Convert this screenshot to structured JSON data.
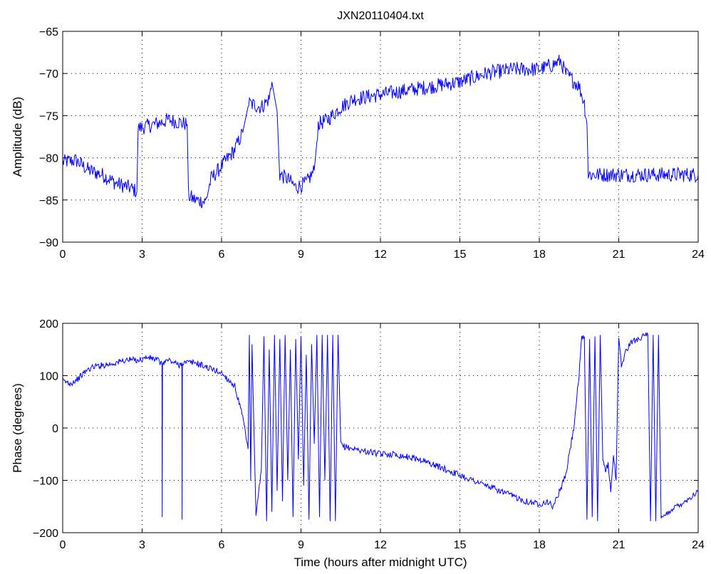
{
  "chart_data": [
    {
      "type": "line",
      "title": "JXN20110404.txt",
      "xlabel": "",
      "ylabel": "Amplitude (dB)",
      "xlim": [
        0,
        24
      ],
      "ylim": [
        -90,
        -65
      ],
      "xticks": [
        "0",
        "3",
        "6",
        "9",
        "12",
        "15",
        "18",
        "21",
        "24"
      ],
      "yticks": [
        "−65",
        "−70",
        "−75",
        "−80",
        "−85",
        "−90"
      ],
      "grid": true,
      "series": [
        {
          "color": "#0000ff",
          "x": [
            0,
            0.5,
            1.0,
            1.5,
            2.0,
            2.5,
            2.8,
            2.85,
            3.5,
            4.0,
            4.7,
            4.75,
            5.0,
            5.4,
            5.6,
            6.0,
            6.5,
            6.8,
            7.0,
            7.5,
            7.8,
            7.9,
            8.1,
            8.2,
            8.5,
            8.8,
            9.2,
            9.5,
            9.6,
            9.65,
            10.0,
            10.5,
            11.0,
            12.0,
            13.0,
            14.0,
            15.0,
            16.0,
            17.0,
            17.5,
            18.0,
            18.5,
            18.8,
            19.0,
            19.5,
            19.7,
            19.8,
            19.85,
            20.5,
            21.0,
            22.0,
            23.0,
            24.0
          ],
          "values": [
            -80.5,
            -80.3,
            -81.5,
            -82.0,
            -83.0,
            -83.5,
            -84.0,
            -76.5,
            -76.0,
            -75.5,
            -76.0,
            -84.5,
            -85.0,
            -85.2,
            -82.5,
            -81.0,
            -79.0,
            -77.0,
            -73.5,
            -74.0,
            -73.0,
            -71.0,
            -74.5,
            -82.0,
            -82.5,
            -83.5,
            -83.0,
            -81.5,
            -78.0,
            -76.0,
            -75.5,
            -74.0,
            -73.0,
            -72.5,
            -72.0,
            -71.5,
            -71.0,
            -70.0,
            -69.5,
            -69.5,
            -69.5,
            -69.0,
            -68.5,
            -70.0,
            -71.5,
            -73.5,
            -76.0,
            -82.0,
            -82.0,
            -82.0,
            -82.0,
            -82.0,
            -82.0
          ]
        }
      ]
    },
    {
      "type": "line",
      "title": "",
      "xlabel": "Time (hours after midnight UTC)",
      "ylabel": "Phase (degrees)",
      "xlim": [
        0,
        24
      ],
      "ylim": [
        -200,
        200
      ],
      "xticks": [
        "0",
        "3",
        "6",
        "9",
        "12",
        "15",
        "18",
        "21",
        "24"
      ],
      "yticks": [
        "200",
        "100",
        "0",
        "−100",
        "−200"
      ],
      "grid": true,
      "series": [
        {
          "color": "#0000ff",
          "x": [
            0,
            0.3,
            0.6,
            0.9,
            1.2,
            1.8,
            2.4,
            2.9,
            3.2,
            3.6,
            3.75,
            3.76,
            3.77,
            4.0,
            4.4,
            4.5,
            4.51,
            4.52,
            5.0,
            5.5,
            6.0,
            6.5,
            6.8,
            7.0,
            7.05,
            7.1,
            7.15,
            7.3,
            7.5,
            7.6,
            7.7,
            7.8,
            7.9,
            8.0,
            8.1,
            8.2,
            8.3,
            8.4,
            8.5,
            8.6,
            8.7,
            8.8,
            8.9,
            9.0,
            9.1,
            9.2,
            9.3,
            9.4,
            9.5,
            9.6,
            9.7,
            9.8,
            9.9,
            10.0,
            10.1,
            10.2,
            10.3,
            10.4,
            10.5,
            10.6,
            11.0,
            11.5,
            12.0,
            12.5,
            13.0,
            13.5,
            14.0,
            14.5,
            15.0,
            15.5,
            16.0,
            16.5,
            17.0,
            17.5,
            18.0,
            18.3,
            18.5,
            18.7,
            19.0,
            19.3,
            19.5,
            19.6,
            19.7,
            19.8,
            19.9,
            20.0,
            20.1,
            20.2,
            20.3,
            20.4,
            20.5,
            20.6,
            20.7,
            20.8,
            20.9,
            21.0,
            21.1,
            21.3,
            21.5,
            21.7,
            21.9,
            22.1,
            22.2,
            22.3,
            22.4,
            22.5,
            22.6,
            22.7,
            22.8,
            23.0,
            23.5,
            24.0
          ],
          "values": [
            90,
            85,
            95,
            110,
            118,
            122,
            130,
            130,
            135,
            130,
            120,
            -170,
            125,
            130,
            120,
            125,
            -175,
            125,
            125,
            115,
            105,
            80,
            20,
            -40,
            178,
            -100,
            160,
            -170,
            -80,
            175,
            -178,
            150,
            -160,
            178,
            -120,
            170,
            -140,
            178,
            -100,
            150,
            -170,
            170,
            -60,
            175,
            -110,
            140,
            -175,
            160,
            -30,
            178,
            -170,
            178,
            -100,
            178,
            -178,
            178,
            -178,
            178,
            -30,
            -35,
            -40,
            -45,
            -50,
            -50,
            -55,
            -60,
            -70,
            -80,
            -90,
            -100,
            -110,
            -120,
            -130,
            -140,
            -145,
            -140,
            -150,
            -130,
            -90,
            0,
            100,
            170,
            175,
            -175,
            170,
            -170,
            175,
            -178,
            178,
            -60,
            -80,
            -70,
            -120,
            -50,
            -100,
            170,
            120,
            150,
            165,
            170,
            175,
            178,
            -178,
            178,
            -178,
            178,
            -175,
            -170,
            -165,
            -155,
            -140,
            -122
          ]
        }
      ]
    }
  ]
}
